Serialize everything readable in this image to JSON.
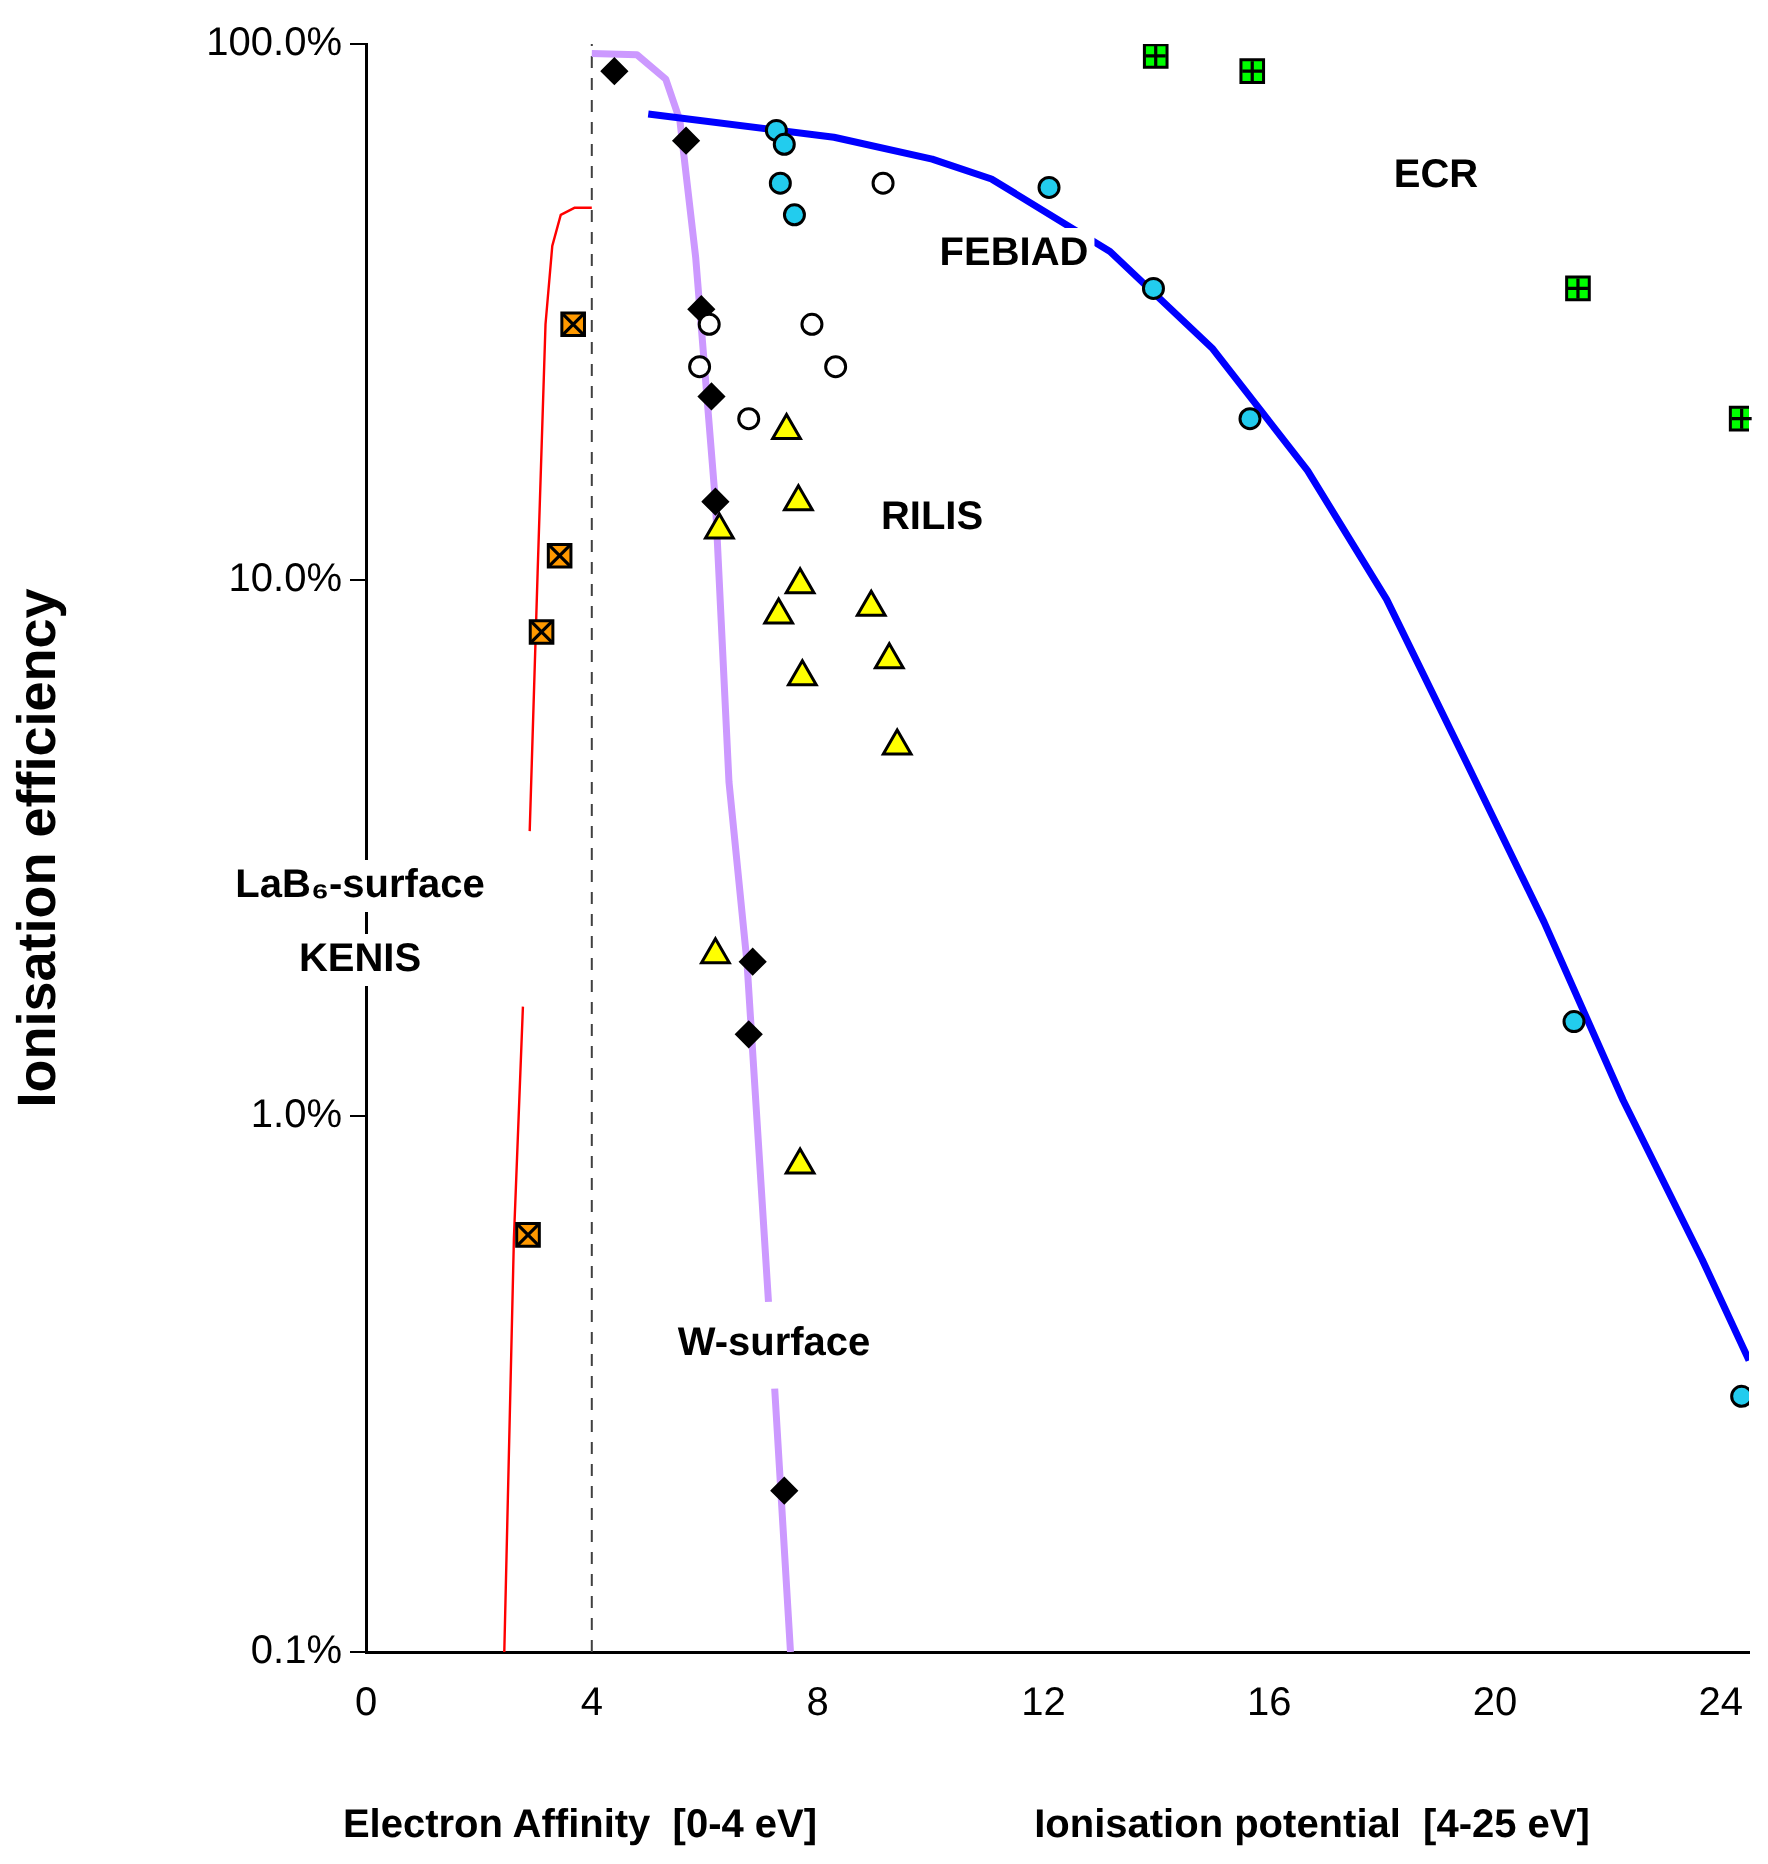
{
  "chart_data": {
    "type": "scatter",
    "ylabel": "Ionisation efficiency",
    "xlabel": "Ionisation potential  [4-25 eV]",
    "xlim": [
      0,
      24.5
    ],
    "xticks": [
      0,
      4,
      8,
      12,
      16,
      20,
      24
    ],
    "ylim": [
      0.1,
      100
    ],
    "yticks": [
      {
        "value": 0.1,
        "label": "0.1%"
      },
      {
        "value": 1,
        "label": "1.0%"
      },
      {
        "value": 10,
        "label": "10.0%"
      },
      {
        "value": 100,
        "label": "100.0%"
      }
    ],
    "log": "y",
    "grid": false,
    "legend": false,
    "series": [
      {
        "type": "line",
        "color": "#ff0000",
        "line_style": "solid",
        "marker": "none",
        "x": [
          2.45,
          2.62,
          2.78,
          2.84,
          2.9,
          3.04,
          3.18,
          3.3,
          3.45,
          3.7,
          4.0
        ],
        "values": [
          0.1,
          0.59,
          1.6,
          null,
          3.4,
          10.3,
          30,
          42,
          48,
          49.5,
          49.5
        ]
      },
      {
        "type": "line",
        "color": "#cc99ff",
        "line_style": "solid",
        "marker": "none",
        "x": [
          4.0,
          4.8,
          5.31,
          5.56,
          5.84,
          6.19,
          6.43,
          6.75,
          7.13,
          7.2,
          7.24,
          7.52
        ],
        "values": [
          96,
          95.5,
          86,
          72,
          40,
          14,
          4.2,
          1.93,
          0.45,
          null,
          0.31,
          0.1
        ]
      },
      {
        "type": "line",
        "color": "#0000ff",
        "line_style": "solid",
        "marker": "none",
        "x": [
          5.0,
          8.29,
          10.03,
          11.08,
          13.18,
          15.0,
          16.68,
          18.08,
          19.48,
          20.87,
          22.27,
          23.67,
          24.5
        ],
        "values": [
          74,
          67,
          61,
          56,
          41,
          27,
          16,
          9.2,
          4.6,
          2.3,
          1.07,
          0.54,
          0.35
        ]
      },
      {
        "color": "#000000",
        "marker": "diamond",
        "x": [
          4.4,
          5.67,
          5.94,
          6.12,
          6.19,
          6.85,
          6.78,
          7.41
        ],
        "values": [
          89,
          66,
          32,
          22,
          14,
          1.94,
          1.42,
          0.2
        ]
      },
      {
        "color": "#ffffff",
        "marker": "circle",
        "x": [
          9.16,
          6.08,
          5.91,
          7.9,
          8.32,
          6.78
        ],
        "values": [
          55,
          30,
          25,
          30,
          25,
          20
        ]
      },
      {
        "color": "#22ccee",
        "marker": "circle",
        "x": [
          7.27,
          7.41,
          7.34,
          7.59,
          12.1,
          13.95,
          15.66,
          21.4,
          24.37
        ],
        "values": [
          69,
          65,
          55,
          48,
          54,
          35,
          20,
          1.5,
          0.3
        ]
      },
      {
        "color": "#ffff00",
        "marker": "triangle",
        "x": [
          7.45,
          6.26,
          7.66,
          7.69,
          7.31,
          8.95,
          9.27,
          7.73,
          9.41,
          6.19,
          7.69
        ],
        "values": [
          19,
          12.4,
          14,
          9.8,
          8.6,
          8.9,
          7.1,
          6.6,
          4.9,
          2.0,
          0.81
        ]
      },
      {
        "color": "#ff9900",
        "marker": "square",
        "x": [
          3.67,
          3.43,
          3.11,
          2.87
        ],
        "values": [
          30,
          11.1,
          8.0,
          0.6
        ]
      },
      {
        "color": "#00ff00",
        "marker": "square",
        "x": [
          13.99,
          15.7,
          21.47,
          24.37
        ],
        "values": [
          95,
          89,
          35,
          20
        ]
      }
    ],
    "ref_lines": [
      {
        "axis": "x",
        "value": 4,
        "color": "#404040",
        "line_style": "dashed"
      }
    ],
    "annotations": [
      "FEBIAD",
      "RILIS",
      "ECR",
      "LaB₆-surface",
      "KENIS",
      "W-surface",
      "Electron Affinity  [0-4 eV]"
    ]
  }
}
